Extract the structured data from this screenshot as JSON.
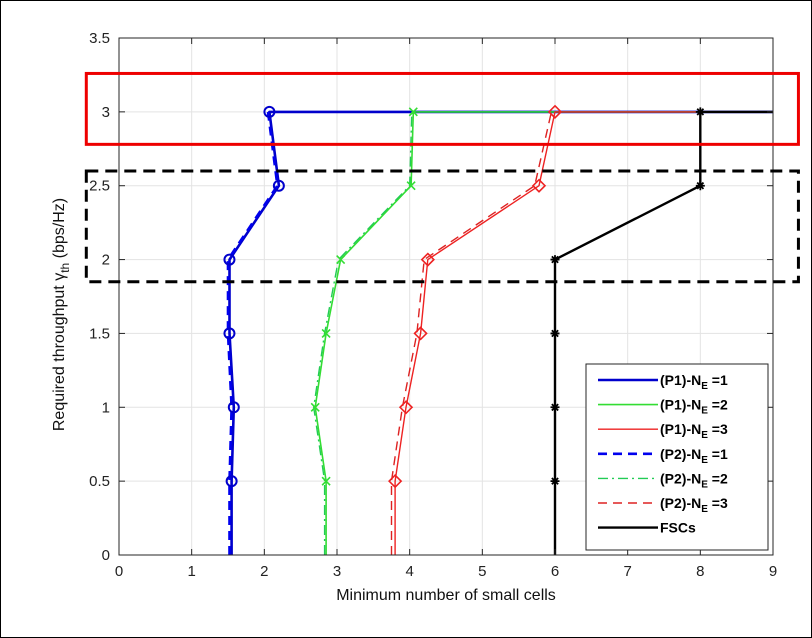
{
  "chart_data": {
    "type": "line",
    "xlabel": "Minimum number of small cells",
    "ylabel": "Required throughput γ",
    "ylabel_sub": "th",
    "ylabel_unit": " (bps/Hz)",
    "xlim": [
      0,
      9
    ],
    "ylim": [
      0,
      3.5
    ],
    "xticks": [
      0,
      1,
      2,
      3,
      4,
      5,
      6,
      7,
      8,
      9
    ],
    "yticks": [
      0,
      0.5,
      1,
      1.5,
      2,
      2.5,
      3,
      3.5
    ],
    "grid": true,
    "legend_position": "lower-right",
    "series": [
      {
        "name": "(P1)-N",
        "name_sub": "E",
        "name_suffix": " =1",
        "color": "#0000cc",
        "dash": "solid",
        "width": 2.6,
        "marker": "circle",
        "points": [
          [
            1.55,
            0
          ],
          [
            1.55,
            0.5
          ],
          [
            1.58,
            1
          ],
          [
            1.52,
            1.5
          ],
          [
            1.52,
            2
          ],
          [
            2.2,
            2.5
          ],
          [
            2.07,
            3
          ],
          [
            4.05,
            3
          ],
          [
            6.0,
            3
          ],
          [
            9.0,
            3
          ]
        ],
        "marker_points": [
          [
            1.55,
            0.5
          ],
          [
            1.58,
            1
          ],
          [
            1.52,
            1.5
          ],
          [
            1.52,
            2
          ],
          [
            2.2,
            2.5
          ],
          [
            2.07,
            3
          ]
        ]
      },
      {
        "name": "(P1)-N",
        "name_sub": "E",
        "name_suffix": " =2",
        "color": "#33dd33",
        "dash": "solid",
        "width": 1.6,
        "marker": "x",
        "points": [
          [
            2.85,
            0
          ],
          [
            2.85,
            0.5
          ],
          [
            2.7,
            1
          ],
          [
            2.85,
            1.5
          ],
          [
            3.05,
            2
          ],
          [
            4.02,
            2.5
          ],
          [
            4.05,
            3
          ],
          [
            6.0,
            3
          ],
          [
            9.0,
            3
          ]
        ],
        "marker_points": [
          [
            2.85,
            0.5
          ],
          [
            2.7,
            1
          ],
          [
            2.85,
            1.5
          ],
          [
            3.05,
            2
          ],
          [
            4.02,
            2.5
          ],
          [
            4.05,
            3
          ]
        ]
      },
      {
        "name": "(P1)-N",
        "name_sub": "E",
        "name_suffix": " =3",
        "color": "#ee2222",
        "dash": "solid",
        "width": 1.4,
        "marker": "diamond",
        "points": [
          [
            3.8,
            0
          ],
          [
            3.8,
            0.5
          ],
          [
            3.95,
            1
          ],
          [
            4.15,
            1.5
          ],
          [
            4.25,
            2
          ],
          [
            5.78,
            2.5
          ],
          [
            6.0,
            3
          ],
          [
            9.0,
            3
          ]
        ],
        "marker_points": [
          [
            3.8,
            0.5
          ],
          [
            3.95,
            1
          ],
          [
            4.15,
            1.5
          ],
          [
            4.25,
            2
          ],
          [
            5.78,
            2.5
          ],
          [
            6.0,
            3
          ]
        ]
      },
      {
        "name": "(P2)-N",
        "name_sub": "E",
        "name_suffix": " =1",
        "color": "#0000ee",
        "dash": "dashed",
        "width": 2.6,
        "marker": "none",
        "points": [
          [
            1.52,
            0
          ],
          [
            1.52,
            0.5
          ],
          [
            1.55,
            1
          ],
          [
            1.5,
            1.5
          ],
          [
            1.5,
            2
          ],
          [
            2.18,
            2.5
          ],
          [
            2.05,
            3
          ]
        ],
        "marker_points": []
      },
      {
        "name": "(P2)-N",
        "name_sub": "E",
        "name_suffix": " =2",
        "color": "#22cc55",
        "dash": "dashdot",
        "width": 1.4,
        "marker": "none",
        "points": [
          [
            2.83,
            0
          ],
          [
            2.83,
            0.5
          ],
          [
            2.68,
            1
          ],
          [
            2.83,
            1.5
          ],
          [
            3.02,
            2
          ],
          [
            4.0,
            2.5
          ],
          [
            4.03,
            3
          ]
        ],
        "marker_points": []
      },
      {
        "name": "(P2)-N",
        "name_sub": "E",
        "name_suffix": " =3",
        "color": "#dd2222",
        "dash": "dashed",
        "width": 1.4,
        "marker": "none",
        "points": [
          [
            3.75,
            0
          ],
          [
            3.75,
            0.5
          ],
          [
            3.9,
            1
          ],
          [
            4.1,
            1.5
          ],
          [
            4.2,
            2
          ],
          [
            5.72,
            2.5
          ],
          [
            5.95,
            3
          ]
        ],
        "marker_points": []
      },
      {
        "name": "FSCs",
        "name_sub": "",
        "name_suffix": "",
        "color": "#000000",
        "dash": "solid",
        "width": 2.4,
        "marker": "star",
        "points": [
          [
            6.0,
            0
          ],
          [
            6.0,
            0.5
          ],
          [
            6.0,
            1
          ],
          [
            6.0,
            1.5
          ],
          [
            6.0,
            2
          ],
          [
            8.0,
            2.5
          ],
          [
            8.0,
            3
          ],
          [
            9.0,
            3
          ]
        ],
        "marker_points": [
          [
            6.0,
            0.5
          ],
          [
            6.0,
            1
          ],
          [
            6.0,
            1.5
          ],
          [
            6.0,
            2
          ],
          [
            8.0,
            2.5
          ],
          [
            8.0,
            3
          ]
        ]
      }
    ],
    "highlights": [
      {
        "label": "red-box-threshold-3",
        "color": "#ee0000",
        "dash": "solid",
        "x_range": [
          -0.45,
          9.35
        ],
        "y_range": [
          2.78,
          3.26
        ]
      },
      {
        "label": "dashed-box-threshold-2-2.5",
        "color": "#000000",
        "dash": "dashed",
        "x_range": [
          -0.45,
          9.35
        ],
        "y_range": [
          1.85,
          2.6
        ]
      }
    ]
  }
}
